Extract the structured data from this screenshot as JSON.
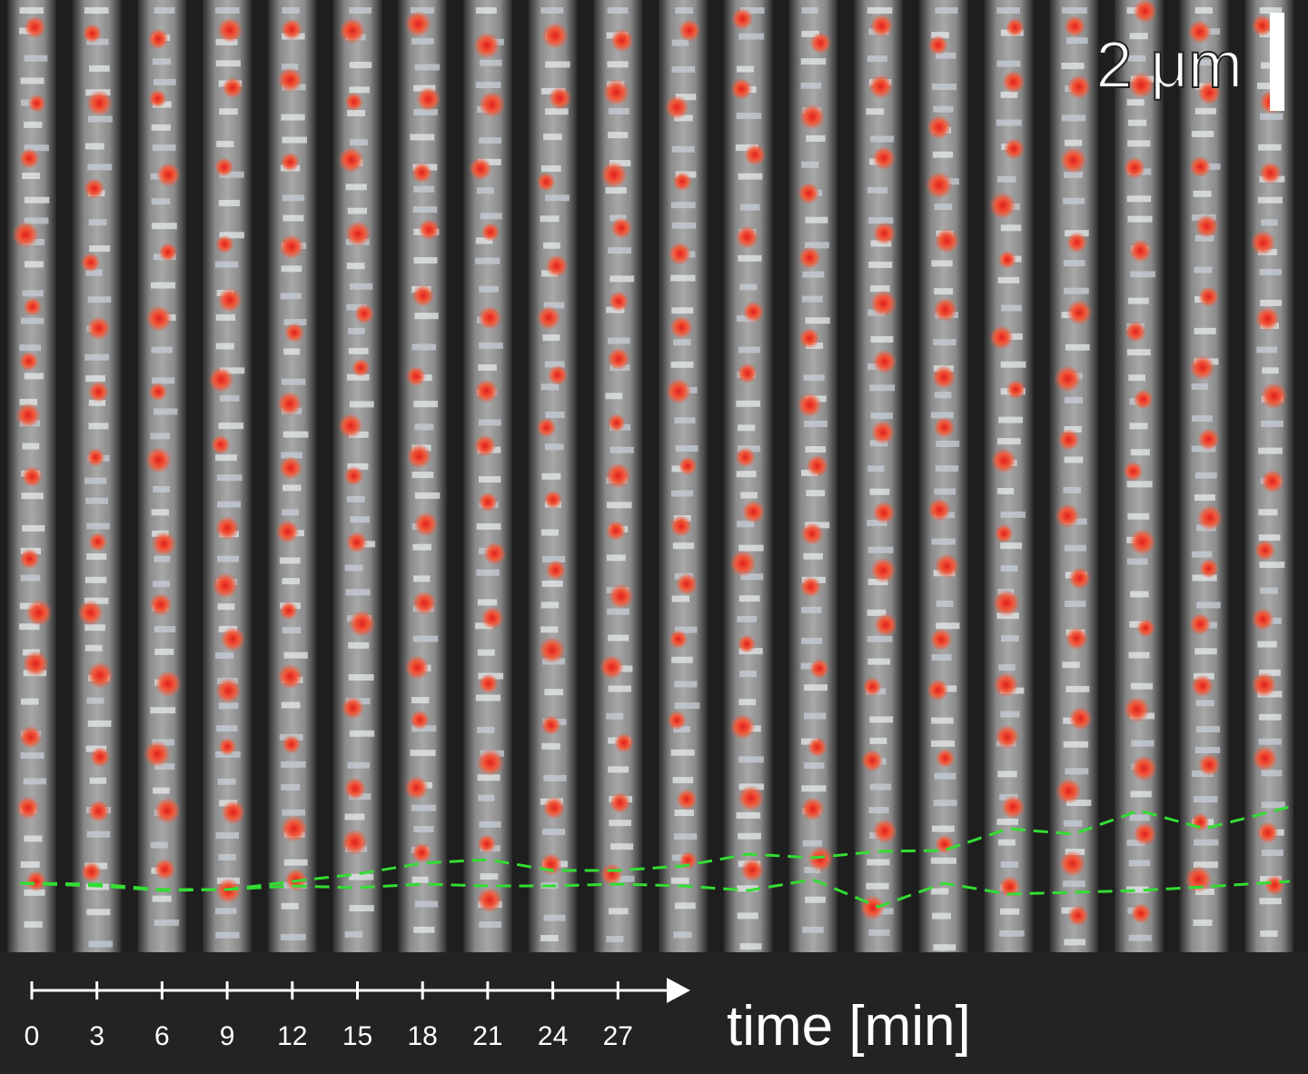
{
  "scale_bar": {
    "label": "2 μm"
  },
  "time_axis": {
    "label": "time [min]",
    "ticks": [
      0,
      3,
      6,
      9,
      12,
      15,
      18,
      21,
      24,
      27
    ]
  }
}
